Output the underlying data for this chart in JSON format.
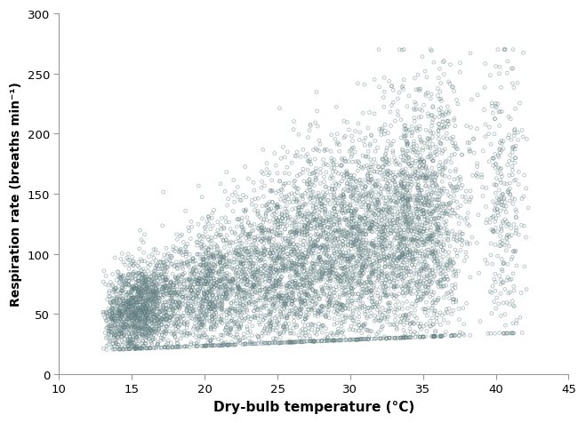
{
  "xlim": [
    10,
    45
  ],
  "ylim": [
    0,
    300
  ],
  "xticks": [
    10,
    15,
    20,
    25,
    30,
    35,
    40,
    45
  ],
  "yticks": [
    0,
    50,
    100,
    150,
    200,
    250,
    300
  ],
  "xlabel": "Dry-bulb temperature (°C)",
  "ylabel": "Respiration rate (breaths min⁻¹)",
  "marker_color": "#607d80",
  "marker_size": 3.5,
  "alpha": 0.5,
  "background_color": "#ffffff",
  "seed": 42,
  "spine_color": "#999999"
}
